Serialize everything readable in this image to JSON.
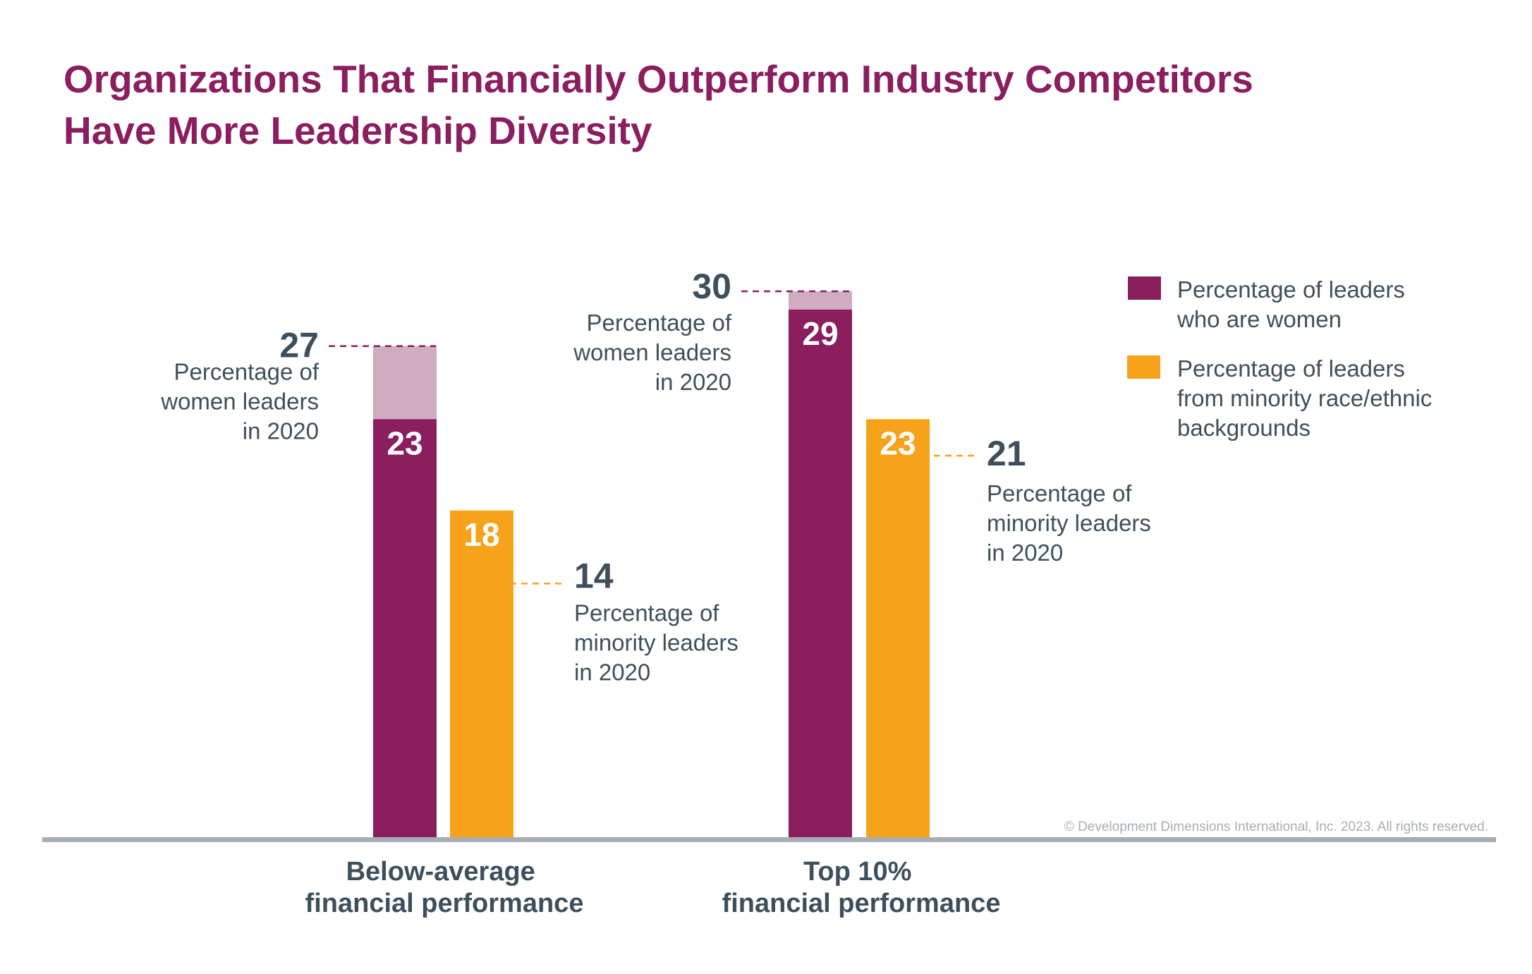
{
  "title": [
    "Organizations That Financially Outperform Industry Competitors",
    "Have More Leadership Diversity"
  ],
  "copyright": "© Development Dimensions International, Inc. 2023. All rights reserved.",
  "chart_data": {
    "type": "bar",
    "title": "Organizations That Financially Outperform Industry Competitors Have More Leadership Diversity",
    "categories": [
      [
        "Below-average",
        "financial performance"
      ],
      [
        "Top 10%",
        "financial performance"
      ]
    ],
    "series": [
      {
        "name": "Percentage of leaders who are women",
        "legend_lines": [
          "Percentage of leaders",
          "who are women"
        ],
        "color": "#8a1e5e",
        "values": [
          23,
          29
        ],
        "values_2020": [
          27,
          30
        ],
        "color_2020": "#cfacbf"
      },
      {
        "name": "Percentage of leaders from minority race/ethnic backgrounds",
        "legend_lines": [
          "Percentage of leaders",
          "from minority race/ethnic",
          "backgrounds"
        ],
        "color": "#f7a21b",
        "values": [
          18,
          23
        ],
        "values_2020": [
          14,
          21
        ]
      }
    ],
    "annotations": {
      "women_2020": [
        "Percentage of",
        "women leaders",
        "in 2020"
      ],
      "minority_2020": [
        "Percentage of",
        "minority leaders",
        "in 2020"
      ]
    },
    "ylim": [
      0,
      30
    ],
    "grid": false,
    "legend_position": "top-right",
    "axis_color": "#a7adb2"
  }
}
